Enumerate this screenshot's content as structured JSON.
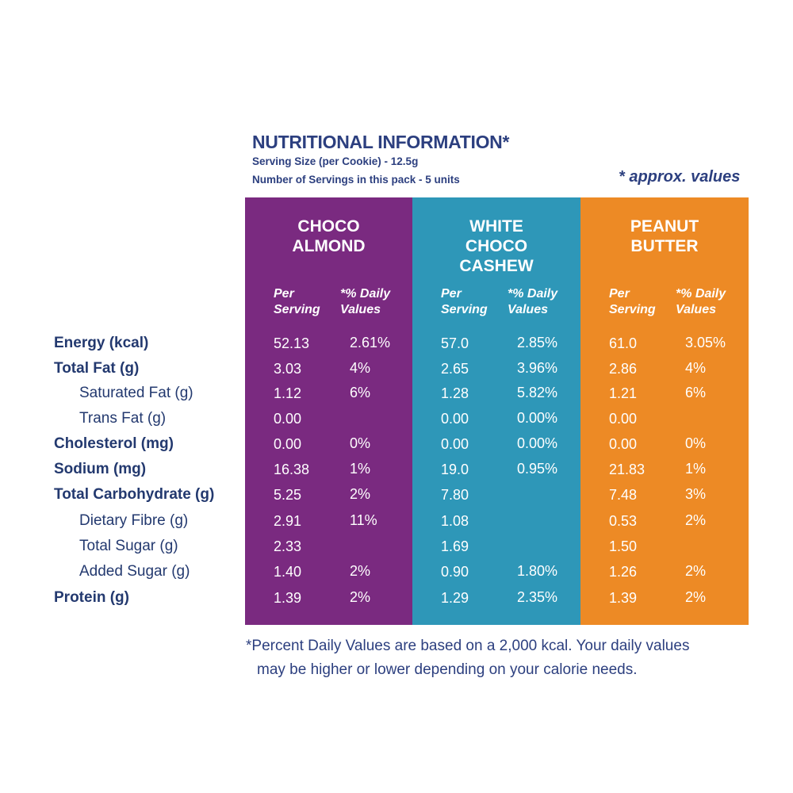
{
  "header": {
    "title": "NUTRITIONAL INFORMATION*",
    "serving_size": "Serving Size (per Cookie) - 12.5g",
    "num_servings": "Number of Servings in this pack - 5 units",
    "approx_note": "* approx. values"
  },
  "columns": {
    "per_serving_label": "Per Serving",
    "daily_values_label": "*% Daily Values"
  },
  "nutrient_labels": [
    "Energy (kcal)",
    "Total Fat (g)",
    "Saturated Fat (g)",
    "Trans Fat (g)",
    "Cholesterol (mg)",
    "Sodium (mg)",
    "Total Carbohydrate (g)",
    "Dietary Fibre (g)",
    "Total Sugar (g)",
    "Added Sugar (g)",
    "Protein (g)"
  ],
  "products": [
    {
      "name": "CHOCO ALMOND",
      "color": "#7a2a80",
      "per_serving": [
        "52.13",
        "3.03",
        "1.12",
        "0.00",
        "0.00",
        "16.38",
        "5.25",
        "2.91",
        "2.33",
        "1.40",
        "1.39"
      ],
      "daily_values": [
        "2.61%",
        "4%",
        "6%",
        "",
        "0%",
        "1%",
        "2%",
        "11%",
        "",
        "2%",
        "2%"
      ]
    },
    {
      "name": "WHITE CHOCO CASHEW",
      "color": "#2e97b8",
      "per_serving": [
        "57.0",
        "2.65",
        "1.28",
        "0.00",
        "0.00",
        "19.0",
        "7.80",
        "1.08",
        "1.69",
        "0.90",
        "1.29"
      ],
      "daily_values": [
        "2.85%",
        "3.96%",
        "5.82%",
        "0.00%",
        "0.00%",
        "0.95%",
        "",
        "",
        "",
        "1.80%",
        "2.35%"
      ]
    },
    {
      "name": "PEANUT BUTTER",
      "color": "#ed8a25",
      "per_serving": [
        "61.0",
        "2.86",
        "1.21",
        "0.00",
        "0.00",
        "21.83",
        "7.48",
        "0.53",
        "1.50",
        "1.26",
        "1.39"
      ],
      "daily_values": [
        "3.05%",
        "4%",
        "6%",
        "",
        "0%",
        "1%",
        "3%",
        "2%",
        "",
        "2%",
        "2%"
      ]
    }
  ],
  "footnote": {
    "line1": "*Percent Daily Values are based on a 2,000 kcal. Your daily values",
    "line2": "may be higher or lower depending on your calorie needs."
  }
}
